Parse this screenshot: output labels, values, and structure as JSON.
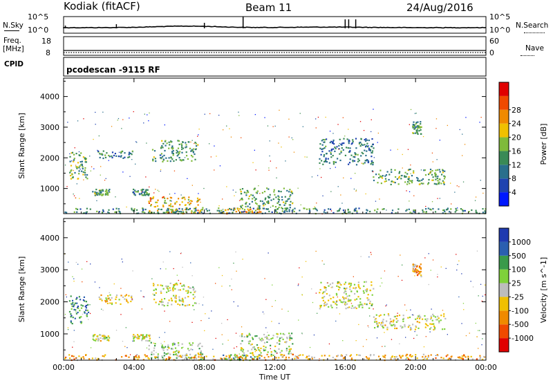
{
  "header": {
    "station": "Kodiak (fitACF)",
    "beam": "Beam 11",
    "date": "24/Aug/2016"
  },
  "side_labels": {
    "nsky": "N.Sky",
    "freq_line1": "Freq.",
    "freq_line2": "[MHz]",
    "cpid": "CPID",
    "nsearch": "N.Search",
    "nave": "Nave"
  },
  "noise_panel": {
    "left_ticks": [
      "10^5",
      "10^0"
    ],
    "right_ticks": [
      "10^5",
      "10^0"
    ]
  },
  "freq_panel": {
    "left_ticks": [
      "18",
      "8"
    ],
    "right_ticks": [
      "60",
      "0"
    ]
  },
  "cpid_text": "pcodescan -9115 RF",
  "colors": {
    "power": [
      "#0018ff",
      "#1f43b0",
      "#2a6f8c",
      "#3a8a56",
      "#7fba3a",
      "#f0c000",
      "#f08a00",
      "#f04a00",
      "#e00000"
    ],
    "velocity": [
      "#e00000",
      "#f04a00",
      "#f08a00",
      "#f0c000",
      "#bdbdbd",
      "#7fd13a",
      "#3a9a4a",
      "#2b5fb0",
      "#1f3ab0"
    ]
  },
  "chart_data": [
    {
      "type": "heatmap",
      "title": "Power",
      "x_ticks": [
        "00:00",
        "04:00",
        "08:00",
        "12:00",
        "16:00",
        "20:00",
        "00:00"
      ],
      "xlim": [
        0,
        24
      ],
      "xlabel": "",
      "ylabel": "Slant Range [km]",
      "y_ticks": [
        "1000",
        "2000",
        "3000",
        "4000"
      ],
      "ylim": [
        180,
        4600
      ],
      "colorbar": {
        "label": "Power [dB]",
        "ticks": [
          "4",
          "8",
          "12",
          "16",
          "20",
          "24",
          "28"
        ],
        "range": [
          0,
          32
        ]
      },
      "regions": [
        {
          "t0": 0.3,
          "t1": 1.4,
          "r0": 1300,
          "r1": 2200,
          "level": 0.45
        },
        {
          "t0": 1.6,
          "t1": 2.6,
          "r0": 800,
          "r1": 1000,
          "level": 0.4
        },
        {
          "t0": 1.9,
          "t1": 3.9,
          "r0": 1950,
          "r1": 2250,
          "level": 0.3
        },
        {
          "t0": 3.9,
          "t1": 4.9,
          "r0": 800,
          "r1": 1000,
          "level": 0.35
        },
        {
          "t0": 5.0,
          "t1": 7.6,
          "r0": 1900,
          "r1": 2600,
          "level": 0.4
        },
        {
          "t0": 4.8,
          "t1": 7.9,
          "r0": 200,
          "r1": 750,
          "level": 0.65
        },
        {
          "t0": 9.0,
          "t1": 11.2,
          "r0": 200,
          "r1": 380,
          "level": 0.7
        },
        {
          "t0": 10.0,
          "t1": 13.0,
          "r0": 350,
          "r1": 1050,
          "level": 0.4
        },
        {
          "t0": 14.5,
          "t1": 17.6,
          "r0": 1800,
          "r1": 2650,
          "level": 0.3
        },
        {
          "t0": 17.5,
          "t1": 21.7,
          "r0": 1150,
          "r1": 1650,
          "level": 0.4
        },
        {
          "t0": 19.8,
          "t1": 20.3,
          "r0": 2800,
          "r1": 3200,
          "level": 0.4
        },
        {
          "t0": 0.0,
          "t1": 24.0,
          "r0": 200,
          "r1": 380,
          "level": 0.35
        }
      ]
    },
    {
      "type": "heatmap",
      "title": "Velocity",
      "x_ticks": [
        "00:00",
        "04:00",
        "08:00",
        "12:00",
        "16:00",
        "20:00",
        "00:00"
      ],
      "xlim": [
        0,
        24
      ],
      "xlabel": "Time UT",
      "ylabel": "Slant Range [km]",
      "y_ticks": [
        "1000",
        "2000",
        "3000",
        "4000"
      ],
      "ylim": [
        180,
        4600
      ],
      "colorbar": {
        "label": "Velocity [m s^-1]",
        "ticks": [
          "-1000",
          "-500",
          "-100",
          "-25",
          "25",
          "100",
          "500",
          "1000"
        ]
      },
      "regions": [
        {
          "t0": 0.3,
          "t1": 1.4,
          "r0": 1300,
          "r1": 2200,
          "level": 0.75
        },
        {
          "t0": 1.6,
          "t1": 2.6,
          "r0": 800,
          "r1": 1000,
          "level": 0.5
        },
        {
          "t0": 1.9,
          "t1": 3.9,
          "r0": 1950,
          "r1": 2250,
          "level": 0.45
        },
        {
          "t0": 3.9,
          "t1": 4.9,
          "r0": 800,
          "r1": 1000,
          "level": 0.5
        },
        {
          "t0": 5.0,
          "t1": 7.6,
          "r0": 1900,
          "r1": 2600,
          "level": 0.5
        },
        {
          "t0": 4.8,
          "t1": 7.9,
          "r0": 200,
          "r1": 750,
          "level": 0.6
        },
        {
          "t0": 9.0,
          "t1": 11.2,
          "r0": 200,
          "r1": 380,
          "level": 0.65
        },
        {
          "t0": 10.0,
          "t1": 13.0,
          "r0": 350,
          "r1": 1050,
          "level": 0.55
        },
        {
          "t0": 14.5,
          "t1": 17.6,
          "r0": 1800,
          "r1": 2650,
          "level": 0.5
        },
        {
          "t0": 17.5,
          "t1": 21.7,
          "r0": 1150,
          "r1": 1650,
          "level": 0.5
        },
        {
          "t0": 19.8,
          "t1": 20.3,
          "r0": 2800,
          "r1": 3200,
          "level": 0.35
        },
        {
          "t0": 0.0,
          "t1": 24.0,
          "r0": 200,
          "r1": 380,
          "level": 0.35
        }
      ]
    }
  ]
}
